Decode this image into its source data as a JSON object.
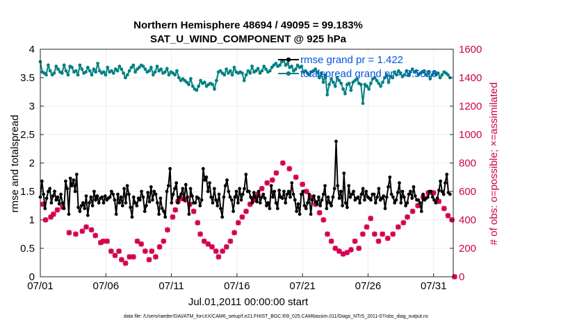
{
  "chart_data": {
    "type": "line",
    "title": "Northern Hemisphere 48694 / 49095 = 99.183%",
    "subtitle": "SAT_U_WIND_COMPONENT @ 925 hPa",
    "xlabel": "Jul.01,2011 00:00:00 start",
    "ylabel_left": "rmse and totalspread",
    "ylabel_right": "# of obs: o=possible; ×=assimilated",
    "xlim": [
      0,
      31.5
    ],
    "ylim_left": [
      0,
      4
    ],
    "ylim_right": [
      0,
      1600
    ],
    "x_tick_positions": [
      0,
      5,
      10,
      15,
      20,
      25,
      30
    ],
    "x_tick_labels": [
      "07/01",
      "07/06",
      "07/11",
      "07/16",
      "07/21",
      "07/26",
      "07/31"
    ],
    "y_left_ticks": [
      "0",
      "0.5",
      "1",
      "1.5",
      "2",
      "2.5",
      "3",
      "3.5",
      "4"
    ],
    "y_right_ticks": [
      "0",
      "200",
      "400",
      "600",
      "800",
      "1000",
      "1200",
      "1400",
      "1600"
    ],
    "grid": true,
    "legend_position": "top-right",
    "colors": {
      "rmse": "#000000",
      "totalspread": "#008080",
      "obs": "#d40050",
      "axis_right": "#cc0044",
      "legend_text": "#0055dd"
    },
    "series": [
      {
        "name": "rmse grand pr = 1.422",
        "axis": "left",
        "marker": "circle",
        "y": [
          1.4,
          1.68,
          1.45,
          1.2,
          1.38,
          1.5,
          1.55,
          1.3,
          1.42,
          1.5,
          1.35,
          1.4,
          1.28,
          1.45,
          1.3,
          1.2,
          1.68,
          1.55,
          1.1,
          1.73,
          1.6,
          1.7,
          1.5,
          1.8,
          1.22,
          1.15,
          1.25,
          1.3,
          1.2,
          1.42,
          1.08,
          1.3,
          1.4,
          1.25,
          1.5,
          1.35,
          1.42,
          1.3,
          1.38,
          1.4,
          1.3,
          1.42,
          1.35,
          1.38,
          1.4,
          1.5,
          1.45,
          1.35,
          1.1,
          1.45,
          1.3,
          1.4,
          1.25,
          1.55,
          1.3,
          1.6,
          1.45,
          1.22,
          1.05,
          1.4,
          1.3,
          1.25,
          1.38,
          1.35,
          1.5,
          1.4,
          1.15,
          1.25,
          1.48,
          1.32,
          1.58,
          1.35,
          1.5,
          1.45,
          1.3,
          1.1,
          1.38,
          1.2,
          1.15,
          1.05,
          1.5,
          1.6,
          1.9,
          1.3,
          1.45,
          1.55,
          1.65,
          1.3,
          1.4,
          1.45,
          1.55,
          1.35,
          1.62,
          1.4,
          1.1,
          1.55,
          1.42,
          1.3,
          1.3,
          1.4,
          1.38,
          1.25,
          1.35,
          1.9,
          1.7,
          1.75,
          1.5,
          1.65,
          1.4,
          1.3,
          1.55,
          1.35,
          1.25,
          1.45,
          1.2,
          1.05,
          1.4,
          1.6,
          1.7,
          1.5,
          1.4,
          1.35,
          1.15,
          1.4,
          1.5,
          1.3,
          1.55,
          1.35,
          1.45,
          1.55,
          1.8,
          1.5,
          1.5,
          1.4,
          1.3,
          1.48,
          1.4,
          1.32,
          1.5,
          1.3,
          1.4,
          1.45,
          1.38,
          1.25,
          1.3,
          1.2,
          1.6,
          1.4,
          1.5,
          1.3,
          1.2,
          1.52,
          1.4,
          1.38,
          1.5,
          1.3,
          1.45,
          1.5,
          1.4,
          1.65,
          1.45,
          1.35,
          1.15,
          1.28,
          1.1,
          1.45,
          1.5,
          1.25,
          1.2,
          1.3,
          1.45,
          1.1,
          1.35,
          1.42,
          1.32,
          1.28,
          1.4,
          1.25,
          1.35,
          1.45,
          1.6,
          1.2,
          1.4,
          1.3,
          1.25,
          1.4,
          1.55,
          2.38,
          1.6,
          1.38,
          1.5,
          1.25,
          1.82,
          1.3,
          1.22,
          1.6,
          1.4,
          1.45,
          1.5,
          1.35,
          1.38,
          1.4,
          1.3,
          1.45,
          1.55,
          1.35,
          1.5,
          1.4,
          1.38,
          1.35,
          1.45,
          1.45,
          1.3,
          1.4,
          1.55,
          1.35,
          1.38,
          1.42,
          1.2,
          1.4,
          1.58,
          1.75,
          1.45,
          1.4,
          1.3,
          1.35,
          1.48,
          1.65,
          1.3,
          1.5,
          1.4,
          1.25,
          1.3,
          1.45,
          1.5,
          1.38,
          1.58,
          1.42,
          1.35,
          1.35,
          1.3,
          1.15,
          1.45,
          1.35,
          1.38,
          1.4,
          1.5,
          1.5,
          1.4,
          1.35,
          1.3,
          1.38,
          1.52,
          1.68,
          1.5,
          1.45,
          1.65,
          1.8,
          1.48,
          1.45
        ]
      },
      {
        "name": "totalspread grand pr = 3.5829",
        "axis": "left",
        "marker": "circle",
        "y": [
          3.78,
          3.6,
          3.58,
          3.55,
          3.72,
          3.62,
          3.55,
          3.58,
          3.7,
          3.65,
          3.6,
          3.58,
          3.72,
          3.62,
          3.55,
          3.7,
          3.68,
          3.6,
          3.62,
          3.55,
          3.72,
          3.65,
          3.58,
          3.6,
          3.68,
          3.62,
          3.55,
          3.65,
          3.6,
          3.75,
          3.62,
          3.58,
          3.6,
          3.55,
          3.68,
          3.6,
          3.62,
          3.58,
          3.65,
          3.62,
          3.7,
          3.65,
          3.58,
          3.5,
          3.55,
          3.62,
          3.68,
          3.72,
          3.6,
          3.65,
          3.68,
          3.72,
          3.7,
          3.65,
          3.6,
          3.62,
          3.68,
          3.55,
          3.6,
          3.7,
          3.62,
          3.65,
          3.58,
          3.6,
          3.66,
          3.55,
          3.6,
          3.58,
          3.55,
          3.62,
          3.5,
          3.45,
          3.48,
          3.45,
          3.42,
          3.38,
          3.48,
          3.35,
          3.3,
          3.28,
          3.35,
          3.45,
          3.4,
          3.42,
          3.35,
          3.38,
          3.4,
          3.38,
          3.3,
          3.45,
          3.6,
          3.62,
          3.58,
          3.55,
          3.65,
          3.58,
          3.62,
          3.55,
          3.68,
          3.6,
          3.58,
          3.6,
          3.58,
          3.45,
          3.55,
          3.62,
          3.58,
          3.7,
          3.6,
          3.62,
          3.66,
          3.58,
          3.62,
          3.7,
          3.65,
          3.6,
          3.62,
          3.68,
          3.72,
          3.75,
          3.7,
          3.72,
          3.78,
          3.8,
          3.72,
          3.75,
          3.68,
          3.7,
          3.62,
          3.65,
          3.72,
          3.68,
          3.7,
          3.6,
          3.62,
          3.58,
          3.55,
          3.6,
          3.62,
          3.65,
          3.6,
          3.5,
          3.58,
          3.42,
          3.55,
          3.2,
          3.38,
          3.48,
          3.42,
          3.35,
          3.5,
          3.45,
          3.4,
          3.3,
          3.22,
          3.38,
          3.4,
          3.28,
          3.42,
          3.45,
          3.48,
          3.4,
          3.38,
          3.05,
          3.38,
          3.35,
          3.3,
          3.4,
          3.48,
          3.5,
          3.45,
          3.4,
          3.35,
          3.42,
          3.5,
          3.55,
          3.42,
          3.52,
          3.5,
          3.6,
          3.55,
          3.62,
          3.58,
          3.52,
          3.55,
          3.62,
          3.55,
          3.6,
          3.65,
          3.6,
          3.62,
          3.55,
          3.58,
          3.6,
          3.62,
          3.55,
          3.6,
          3.48,
          3.55,
          3.6,
          3.55,
          3.58,
          3.5,
          3.55,
          3.6,
          3.58,
          3.55,
          3.5
        ]
      }
    ],
    "obs_series": {
      "name": "# of obs",
      "axis": "right",
      "marker": "cross",
      "points": [
        [
          0.2,
          510
        ],
        [
          0.4,
          400
        ],
        [
          0.8,
          420
        ],
        [
          1.0,
          440
        ],
        [
          1.3,
          470
        ],
        [
          1.7,
          490
        ],
        [
          2.2,
          310
        ],
        [
          2.7,
          300
        ],
        [
          3.2,
          320
        ],
        [
          3.5,
          350
        ],
        [
          3.9,
          330
        ],
        [
          4.2,
          290
        ],
        [
          4.6,
          240
        ],
        [
          4.8,
          250
        ],
        [
          5.1,
          250
        ],
        [
          5.4,
          180
        ],
        [
          5.7,
          150
        ],
        [
          6.0,
          180
        ],
        [
          6.2,
          120
        ],
        [
          6.5,
          95
        ],
        [
          6.8,
          140
        ],
        [
          7.1,
          140
        ],
        [
          7.4,
          250
        ],
        [
          7.7,
          230
        ],
        [
          8.0,
          180
        ],
        [
          8.3,
          120
        ],
        [
          8.5,
          180
        ],
        [
          8.8,
          140
        ],
        [
          9.1,
          210
        ],
        [
          9.4,
          250
        ],
        [
          9.7,
          330
        ],
        [
          10.1,
          420
        ],
        [
          10.3,
          470
        ],
        [
          10.5,
          530
        ],
        [
          10.8,
          550
        ],
        [
          11.1,
          540
        ],
        [
          11.4,
          510
        ],
        [
          11.7,
          460
        ],
        [
          12.0,
          380
        ],
        [
          12.2,
          300
        ],
        [
          12.5,
          250
        ],
        [
          12.8,
          230
        ],
        [
          13.1,
          210
        ],
        [
          13.4,
          180
        ],
        [
          13.6,
          140
        ],
        [
          13.9,
          180
        ],
        [
          14.2,
          210
        ],
        [
          14.5,
          250
        ],
        [
          14.8,
          310
        ],
        [
          15.1,
          380
        ],
        [
          15.4,
          420
        ],
        [
          15.7,
          460
        ],
        [
          16.0,
          510
        ],
        [
          16.3,
          540
        ],
        [
          16.6,
          580
        ],
        [
          16.9,
          620
        ],
        [
          17.3,
          660
        ],
        [
          17.7,
          680
        ],
        [
          18.0,
          730
        ],
        [
          18.5,
          800
        ],
        [
          19.0,
          760
        ],
        [
          19.5,
          700
        ],
        [
          20.0,
          650
        ],
        [
          20.3,
          600
        ],
        [
          20.6,
          560
        ],
        [
          21.0,
          510
        ],
        [
          21.3,
          450
        ],
        [
          21.6,
          400
        ],
        [
          21.9,
          300
        ],
        [
          22.2,
          250
        ],
        [
          22.5,
          200
        ],
        [
          22.8,
          180
        ],
        [
          23.1,
          160
        ],
        [
          23.4,
          170
        ],
        [
          23.7,
          190
        ],
        [
          24.0,
          250
        ],
        [
          24.3,
          200
        ],
        [
          24.6,
          300
        ],
        [
          24.9,
          350
        ],
        [
          25.2,
          410
        ],
        [
          25.5,
          300
        ],
        [
          25.8,
          250
        ],
        [
          26.1,
          300
        ],
        [
          26.5,
          270
        ],
        [
          26.9,
          300
        ],
        [
          27.3,
          350
        ],
        [
          27.7,
          380
        ],
        [
          28.0,
          420
        ],
        [
          28.4,
          460
        ],
        [
          28.8,
          500
        ],
        [
          29.2,
          560
        ],
        [
          29.6,
          590
        ],
        [
          30.0,
          590
        ],
        [
          30.4,
          530
        ],
        [
          30.8,
          480
        ],
        [
          31.1,
          430
        ],
        [
          31.4,
          400
        ],
        [
          31.6,
          0
        ]
      ]
    }
  },
  "footer": {
    "data_file": "data file: /Users/raeder/DAI/ATM_forcXX/CAM6_setup/f.e21.FHIST_BGC.f09_025.CAM6assim.011/Diags_NTrS_2011-07/obs_diag_output.nc"
  }
}
